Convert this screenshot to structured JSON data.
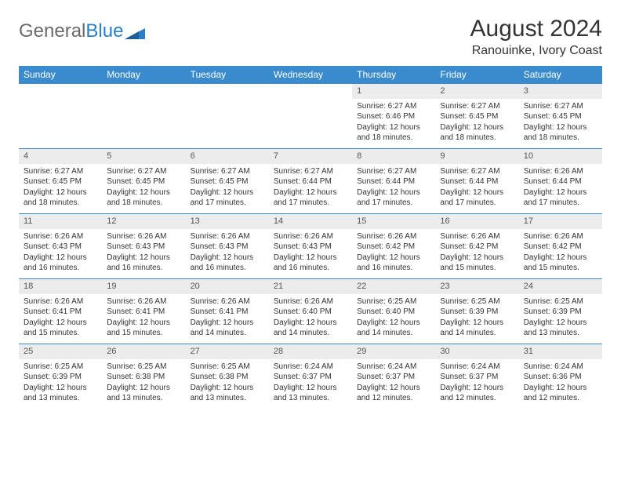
{
  "logo": {
    "text_general": "General",
    "text_blue": "Blue"
  },
  "title": "August 2024",
  "location": "Ranouinke, Ivory Coast",
  "colors": {
    "header_bg": "#3a8bcd",
    "header_text": "#ffffff",
    "num_bar_bg": "#ececec",
    "border": "#3a8bcd",
    "body_text": "#333333",
    "logo_blue": "#2b7fc4",
    "logo_gray": "#6a6a6a"
  },
  "day_names": [
    "Sunday",
    "Monday",
    "Tuesday",
    "Wednesday",
    "Thursday",
    "Friday",
    "Saturday"
  ],
  "weeks": [
    [
      {
        "n": "",
        "sr": "",
        "ss": "",
        "dl": ""
      },
      {
        "n": "",
        "sr": "",
        "ss": "",
        "dl": ""
      },
      {
        "n": "",
        "sr": "",
        "ss": "",
        "dl": ""
      },
      {
        "n": "",
        "sr": "",
        "ss": "",
        "dl": ""
      },
      {
        "n": "1",
        "sr": "Sunrise: 6:27 AM",
        "ss": "Sunset: 6:46 PM",
        "dl": "Daylight: 12 hours and 18 minutes."
      },
      {
        "n": "2",
        "sr": "Sunrise: 6:27 AM",
        "ss": "Sunset: 6:45 PM",
        "dl": "Daylight: 12 hours and 18 minutes."
      },
      {
        "n": "3",
        "sr": "Sunrise: 6:27 AM",
        "ss": "Sunset: 6:45 PM",
        "dl": "Daylight: 12 hours and 18 minutes."
      }
    ],
    [
      {
        "n": "4",
        "sr": "Sunrise: 6:27 AM",
        "ss": "Sunset: 6:45 PM",
        "dl": "Daylight: 12 hours and 18 minutes."
      },
      {
        "n": "5",
        "sr": "Sunrise: 6:27 AM",
        "ss": "Sunset: 6:45 PM",
        "dl": "Daylight: 12 hours and 18 minutes."
      },
      {
        "n": "6",
        "sr": "Sunrise: 6:27 AM",
        "ss": "Sunset: 6:45 PM",
        "dl": "Daylight: 12 hours and 17 minutes."
      },
      {
        "n": "7",
        "sr": "Sunrise: 6:27 AM",
        "ss": "Sunset: 6:44 PM",
        "dl": "Daylight: 12 hours and 17 minutes."
      },
      {
        "n": "8",
        "sr": "Sunrise: 6:27 AM",
        "ss": "Sunset: 6:44 PM",
        "dl": "Daylight: 12 hours and 17 minutes."
      },
      {
        "n": "9",
        "sr": "Sunrise: 6:27 AM",
        "ss": "Sunset: 6:44 PM",
        "dl": "Daylight: 12 hours and 17 minutes."
      },
      {
        "n": "10",
        "sr": "Sunrise: 6:26 AM",
        "ss": "Sunset: 6:44 PM",
        "dl": "Daylight: 12 hours and 17 minutes."
      }
    ],
    [
      {
        "n": "11",
        "sr": "Sunrise: 6:26 AM",
        "ss": "Sunset: 6:43 PM",
        "dl": "Daylight: 12 hours and 16 minutes."
      },
      {
        "n": "12",
        "sr": "Sunrise: 6:26 AM",
        "ss": "Sunset: 6:43 PM",
        "dl": "Daylight: 12 hours and 16 minutes."
      },
      {
        "n": "13",
        "sr": "Sunrise: 6:26 AM",
        "ss": "Sunset: 6:43 PM",
        "dl": "Daylight: 12 hours and 16 minutes."
      },
      {
        "n": "14",
        "sr": "Sunrise: 6:26 AM",
        "ss": "Sunset: 6:43 PM",
        "dl": "Daylight: 12 hours and 16 minutes."
      },
      {
        "n": "15",
        "sr": "Sunrise: 6:26 AM",
        "ss": "Sunset: 6:42 PM",
        "dl": "Daylight: 12 hours and 16 minutes."
      },
      {
        "n": "16",
        "sr": "Sunrise: 6:26 AM",
        "ss": "Sunset: 6:42 PM",
        "dl": "Daylight: 12 hours and 15 minutes."
      },
      {
        "n": "17",
        "sr": "Sunrise: 6:26 AM",
        "ss": "Sunset: 6:42 PM",
        "dl": "Daylight: 12 hours and 15 minutes."
      }
    ],
    [
      {
        "n": "18",
        "sr": "Sunrise: 6:26 AM",
        "ss": "Sunset: 6:41 PM",
        "dl": "Daylight: 12 hours and 15 minutes."
      },
      {
        "n": "19",
        "sr": "Sunrise: 6:26 AM",
        "ss": "Sunset: 6:41 PM",
        "dl": "Daylight: 12 hours and 15 minutes."
      },
      {
        "n": "20",
        "sr": "Sunrise: 6:26 AM",
        "ss": "Sunset: 6:41 PM",
        "dl": "Daylight: 12 hours and 14 minutes."
      },
      {
        "n": "21",
        "sr": "Sunrise: 6:26 AM",
        "ss": "Sunset: 6:40 PM",
        "dl": "Daylight: 12 hours and 14 minutes."
      },
      {
        "n": "22",
        "sr": "Sunrise: 6:25 AM",
        "ss": "Sunset: 6:40 PM",
        "dl": "Daylight: 12 hours and 14 minutes."
      },
      {
        "n": "23",
        "sr": "Sunrise: 6:25 AM",
        "ss": "Sunset: 6:39 PM",
        "dl": "Daylight: 12 hours and 14 minutes."
      },
      {
        "n": "24",
        "sr": "Sunrise: 6:25 AM",
        "ss": "Sunset: 6:39 PM",
        "dl": "Daylight: 12 hours and 13 minutes."
      }
    ],
    [
      {
        "n": "25",
        "sr": "Sunrise: 6:25 AM",
        "ss": "Sunset: 6:39 PM",
        "dl": "Daylight: 12 hours and 13 minutes."
      },
      {
        "n": "26",
        "sr": "Sunrise: 6:25 AM",
        "ss": "Sunset: 6:38 PM",
        "dl": "Daylight: 12 hours and 13 minutes."
      },
      {
        "n": "27",
        "sr": "Sunrise: 6:25 AM",
        "ss": "Sunset: 6:38 PM",
        "dl": "Daylight: 12 hours and 13 minutes."
      },
      {
        "n": "28",
        "sr": "Sunrise: 6:24 AM",
        "ss": "Sunset: 6:37 PM",
        "dl": "Daylight: 12 hours and 13 minutes."
      },
      {
        "n": "29",
        "sr": "Sunrise: 6:24 AM",
        "ss": "Sunset: 6:37 PM",
        "dl": "Daylight: 12 hours and 12 minutes."
      },
      {
        "n": "30",
        "sr": "Sunrise: 6:24 AM",
        "ss": "Sunset: 6:37 PM",
        "dl": "Daylight: 12 hours and 12 minutes."
      },
      {
        "n": "31",
        "sr": "Sunrise: 6:24 AM",
        "ss": "Sunset: 6:36 PM",
        "dl": "Daylight: 12 hours and 12 minutes."
      }
    ]
  ]
}
